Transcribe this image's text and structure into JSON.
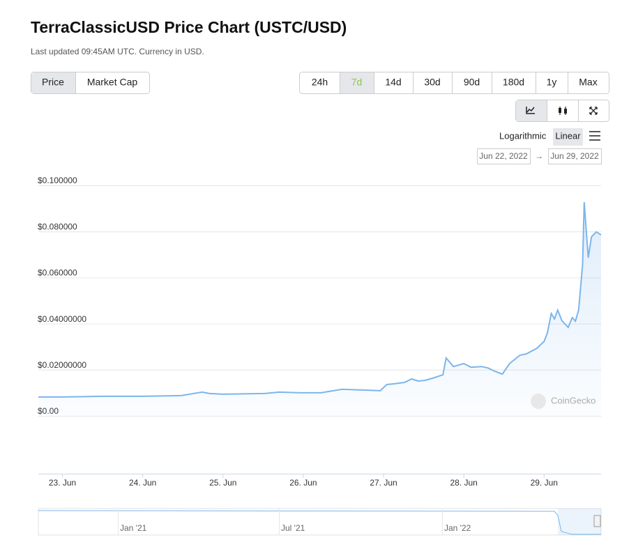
{
  "header": {
    "title": "TerraClassicUSD Price Chart (USTC/USD)",
    "subtitle": "Last updated 09:45AM UTC. Currency in USD."
  },
  "controls": {
    "metric_tabs": [
      "Price",
      "Market Cap"
    ],
    "ranges": [
      "24h",
      "7d",
      "14d",
      "30d",
      "90d",
      "180d",
      "1y",
      "Max"
    ],
    "scales": [
      "Logarithmic",
      "Linear"
    ],
    "date_from": "Jun 22, 2022",
    "date_arrow": "→",
    "date_to": "Jun 29, 2022"
  },
  "chart_data": {
    "type": "line",
    "color": "#7cb5ec",
    "grid": true,
    "x": [
      22.7,
      23.0,
      23.52,
      24.0,
      24.48,
      24.74,
      24.83,
      25.0,
      25.52,
      25.7,
      25.96,
      26.22,
      26.48,
      26.74,
      26.96,
      27.04,
      27.13,
      27.26,
      27.35,
      27.43,
      27.52,
      27.61,
      27.74,
      27.78,
      27.87,
      28.0,
      28.09,
      28.22,
      28.3,
      28.39,
      28.48,
      28.57,
      28.7,
      28.78,
      28.91,
      29.0,
      29.04,
      29.09,
      29.13,
      29.17,
      29.22,
      29.3,
      29.35,
      29.39,
      29.43,
      29.48,
      29.5,
      29.55,
      29.59,
      29.65,
      29.71
    ],
    "values": [
      0.0082,
      0.0082,
      0.0085,
      0.0085,
      0.0088,
      0.0103,
      0.0097,
      0.0094,
      0.0097,
      0.0103,
      0.01,
      0.01,
      0.0115,
      0.0112,
      0.0109,
      0.0136,
      0.0139,
      0.0145,
      0.016,
      0.0151,
      0.0154,
      0.0163,
      0.0178,
      0.0251,
      0.0214,
      0.0227,
      0.0211,
      0.0214,
      0.0208,
      0.0193,
      0.0181,
      0.0227,
      0.0263,
      0.0269,
      0.0293,
      0.0323,
      0.0359,
      0.0444,
      0.042,
      0.0459,
      0.0414,
      0.0384,
      0.0426,
      0.0411,
      0.0459,
      0.0656,
      0.0927,
      0.0686,
      0.0776,
      0.0798,
      0.0785
    ],
    "xlim": [
      22.7,
      29.71
    ],
    "xticks": [
      {
        "value": 23,
        "label": "23. Jun"
      },
      {
        "value": 24,
        "label": "24. Jun"
      },
      {
        "value": 25,
        "label": "25. Jun"
      },
      {
        "value": 26,
        "label": "26. Jun"
      },
      {
        "value": 27,
        "label": "27. Jun"
      },
      {
        "value": 28,
        "label": "28. Jun"
      },
      {
        "value": 29,
        "label": "29. Jun"
      }
    ],
    "ylim": [
      0,
      0.1
    ],
    "yticks": [
      {
        "value": 0,
        "label": "$0.00"
      },
      {
        "value": 0.02,
        "label": "$0.02000000"
      },
      {
        "value": 0.04,
        "label": "$0.04000000"
      },
      {
        "value": 0.06,
        "label": "$0.060000"
      },
      {
        "value": 0.08,
        "label": "$0.080000"
      },
      {
        "value": 0.1,
        "label": "$0.100000"
      }
    ],
    "watermark": "CoinGecko",
    "navigator_labels": [
      "Jan '21",
      "Jul '21",
      "Jan '22"
    ]
  }
}
